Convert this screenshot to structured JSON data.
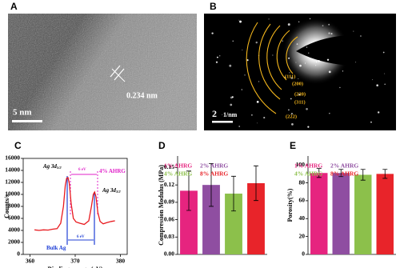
{
  "images": [
    {
      "label": "A",
      "scale_bar": "5 nm",
      "annotation": "0.234 nm"
    },
    {
      "label": "B",
      "scale_bar": "2",
      "scale_unit": "1/nm",
      "rings": [
        "(111)",
        "(200)",
        "(220)",
        "(311)",
        "(222)"
      ]
    }
  ],
  "chart_data": [
    {
      "type": "line",
      "title": "C",
      "xlabel": "Binding energy (eV)",
      "ylabel": "Counts/s",
      "x": [
        361,
        362,
        363,
        364,
        365,
        366,
        366.8,
        367.4,
        367.8,
        368.1,
        368.4,
        368.7,
        369.1,
        369.6,
        370.2,
        371,
        372,
        373,
        373.6,
        374,
        374.3,
        374.6,
        375,
        375.5,
        376.2,
        377,
        378,
        378.8
      ],
      "series": [
        {
          "color": "#e8191e",
          "values": [
            4100,
            4000,
            4100,
            4050,
            4200,
            4300,
            5200,
            8000,
            11500,
            12700,
            12800,
            11800,
            8500,
            6000,
            5400,
            5200,
            5000,
            5600,
            8000,
            10000,
            10400,
            9600,
            7000,
            5500,
            5100,
            5300,
            5500,
            5600
          ]
        }
      ],
      "xlim": [
        358.5,
        381.5
      ],
      "xticks": [
        360,
        370,
        380
      ],
      "ylim": [
        0,
        16000
      ],
      "yticks": [
        0,
        2000,
        4000,
        6000,
        8000,
        10000,
        12000,
        14000,
        16000
      ],
      "annotations": [
        {
          "text": "Ag 3d",
          "sub": "5/2"
        },
        {
          "text": "Ag 3d",
          "sub": "3/2"
        },
        {
          "text": "4% AHRG"
        },
        {
          "text": "6 eV"
        },
        {
          "text": "6 eV"
        },
        {
          "text": "Bulk Ag"
        }
      ]
    },
    {
      "type": "bar",
      "title": "D",
      "ylabel": "Compression Modulus (MPa)",
      "categories": [
        null
      ],
      "series": [
        {
          "name": "1% AHRG",
          "color": "#e6247f",
          "values": [
            0.11
          ],
          "errors": [
            0.034
          ]
        },
        {
          "name": "2% AHRG",
          "color": "#8f4ea1",
          "values": [
            0.12
          ],
          "errors": [
            0.037
          ]
        },
        {
          "name": "4% AHRG",
          "color": "#8cc04b",
          "values": [
            0.105
          ],
          "errors": [
            0.03
          ]
        },
        {
          "name": "8% AHRG",
          "color": "#e8242a",
          "values": [
            0.123
          ],
          "errors": [
            0.03
          ]
        }
      ],
      "ylim": [
        0,
        0.17
      ],
      "yticks": [
        {
          "value": 0,
          "label": "0.00"
        },
        0.03,
        0.06,
        0.09,
        0.12,
        0.15
      ],
      "legend": "upper left"
    },
    {
      "type": "bar",
      "title": "E",
      "ylabel": "Porosity(%)",
      "categories": [
        null
      ],
      "series": [
        {
          "name": "1% AHRG",
          "color": "#e6247f",
          "values": [
            91
          ],
          "errors": [
            5
          ]
        },
        {
          "name": "2% AHRG",
          "color": "#8f4ea1",
          "values": [
            91
          ],
          "errors": [
            4
          ]
        },
        {
          "name": "4% AHRG",
          "color": "#8cc04b",
          "values": [
            89
          ],
          "errors": [
            6
          ]
        },
        {
          "name": "8% AHRG",
          "color": "#e8242a",
          "values": [
            90
          ],
          "errors": [
            5
          ]
        }
      ],
      "ylim": [
        0,
        110
      ],
      "yticks": [
        0,
        20,
        40,
        60,
        80,
        100
      ],
      "legend": "upper left"
    }
  ]
}
